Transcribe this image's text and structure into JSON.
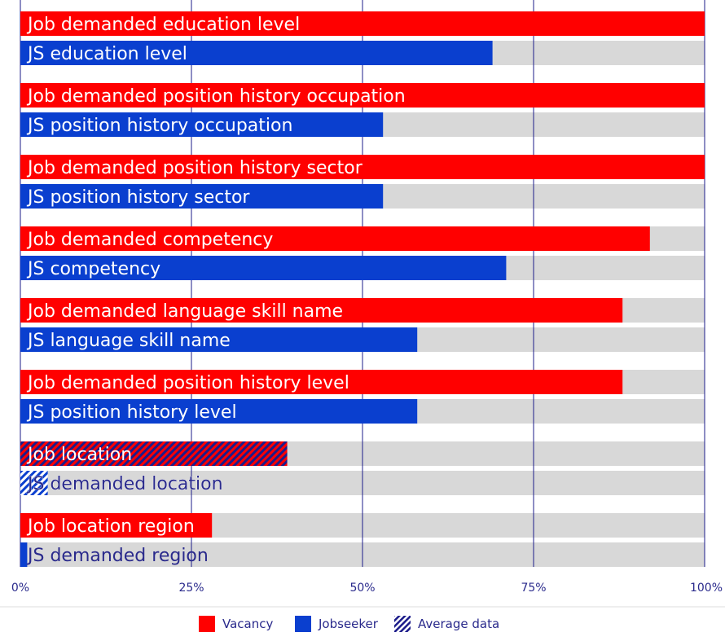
{
  "chart_data": {
    "type": "bar",
    "orientation": "horizontal",
    "title": "",
    "xlabel": "",
    "ylabel": "",
    "xlim": [
      0,
      100
    ],
    "x_ticks": [
      "0%",
      "25%",
      "50%",
      "75%",
      "100%"
    ],
    "grid": true,
    "legend_position": "bottom-center",
    "colors": {
      "vacancy": "#ff0000",
      "jobseeker": "#0a3fcf",
      "track": "#d8d8d8",
      "grid": "#1c1c8a",
      "label_on_bar": "#ffffff",
      "label_off_bar": "#2a2a8c"
    },
    "legend": [
      {
        "name": "Vacancy",
        "swatch": "solid",
        "color": "#ff0000"
      },
      {
        "name": "Jobseeker",
        "swatch": "solid",
        "color": "#0a3fcf"
      },
      {
        "name": "Average data",
        "swatch": "hatched",
        "color": "#1c1c8a"
      }
    ],
    "bars": [
      {
        "label": "Job demanded education level",
        "series": "vacancy",
        "value": 100,
        "hatched": false
      },
      {
        "label": "JS education level",
        "series": "jobseeker",
        "value": 69,
        "hatched": false
      },
      {
        "label": "Job demanded position history occupation",
        "series": "vacancy",
        "value": 100,
        "hatched": false
      },
      {
        "label": "JS position history occupation",
        "series": "jobseeker",
        "value": 53,
        "hatched": false
      },
      {
        "label": "Job demanded position history sector",
        "series": "vacancy",
        "value": 100,
        "hatched": false
      },
      {
        "label": "JS position history sector",
        "series": "jobseeker",
        "value": 53,
        "hatched": false
      },
      {
        "label": "Job demanded competency",
        "series": "vacancy",
        "value": 92,
        "hatched": false
      },
      {
        "label": "JS competency",
        "series": "jobseeker",
        "value": 71,
        "hatched": false
      },
      {
        "label": "Job demanded language skill name",
        "series": "vacancy",
        "value": 88,
        "hatched": false
      },
      {
        "label": "JS language skill name",
        "series": "jobseeker",
        "value": 58,
        "hatched": false
      },
      {
        "label": "Job demanded position history level",
        "series": "vacancy",
        "value": 88,
        "hatched": false
      },
      {
        "label": "JS position history level",
        "series": "jobseeker",
        "value": 58,
        "hatched": false
      },
      {
        "label": "Job location",
        "series": "vacancy",
        "value": 39,
        "hatched": true
      },
      {
        "label": "JS demanded location",
        "series": "jobseeker",
        "value": 4,
        "hatched": true
      },
      {
        "label": "Job location region",
        "series": "vacancy",
        "value": 28,
        "hatched": false
      },
      {
        "label": "JS demanded region",
        "series": "jobseeker",
        "value": 1,
        "hatched": false
      }
    ]
  }
}
